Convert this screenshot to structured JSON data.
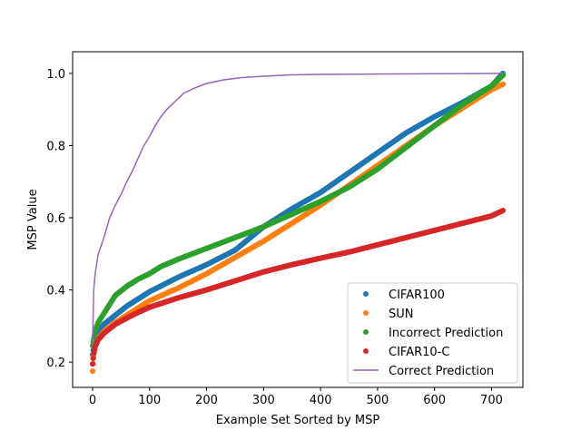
{
  "chart_data": {
    "type": "scatter",
    "title": "",
    "xlabel": "Example Set Sorted by MSP",
    "ylabel": "MSP Value",
    "xlim": [
      -35,
      755
    ],
    "ylim": [
      0.13,
      1.06
    ],
    "xticks": [
      0,
      100,
      200,
      300,
      400,
      500,
      600,
      700
    ],
    "yticks": [
      0.2,
      0.4,
      0.6,
      0.8,
      1.0
    ],
    "xtick_labels": [
      "0",
      "100",
      "200",
      "300",
      "400",
      "500",
      "600",
      "700"
    ],
    "ytick_labels": [
      "0.2",
      "0.4",
      "0.6",
      "0.8",
      "1.0"
    ],
    "grid": false,
    "legend_position": "bottom-right",
    "series": [
      {
        "name": "CIFAR100",
        "kind": "points",
        "color": "#1f77b4",
        "points": [
          [
            0,
            0.22
          ],
          [
            2,
            0.245
          ],
          [
            5,
            0.265
          ],
          [
            10,
            0.285
          ],
          [
            20,
            0.305
          ],
          [
            40,
            0.33
          ],
          [
            60,
            0.355
          ],
          [
            80,
            0.375
          ],
          [
            100,
            0.395
          ],
          [
            150,
            0.435
          ],
          [
            200,
            0.47
          ],
          [
            250,
            0.51
          ],
          [
            300,
            0.575
          ],
          [
            350,
            0.625
          ],
          [
            400,
            0.67
          ],
          [
            450,
            0.725
          ],
          [
            500,
            0.78
          ],
          [
            550,
            0.835
          ],
          [
            600,
            0.88
          ],
          [
            650,
            0.92
          ],
          [
            700,
            0.965
          ],
          [
            720,
            1.0
          ]
        ]
      },
      {
        "name": "SUN",
        "kind": "points",
        "color": "#ff7f0e",
        "points": [
          [
            0,
            0.175
          ],
          [
            2,
            0.215
          ],
          [
            5,
            0.245
          ],
          [
            10,
            0.265
          ],
          [
            20,
            0.285
          ],
          [
            40,
            0.31
          ],
          [
            60,
            0.33
          ],
          [
            80,
            0.35
          ],
          [
            100,
            0.37
          ],
          [
            150,
            0.405
          ],
          [
            200,
            0.445
          ],
          [
            250,
            0.49
          ],
          [
            300,
            0.535
          ],
          [
            350,
            0.585
          ],
          [
            400,
            0.635
          ],
          [
            450,
            0.69
          ],
          [
            500,
            0.745
          ],
          [
            550,
            0.8
          ],
          [
            600,
            0.855
          ],
          [
            650,
            0.905
          ],
          [
            700,
            0.955
          ],
          [
            720,
            0.97
          ]
        ]
      },
      {
        "name": "Incorrect Prediction",
        "kind": "points",
        "color": "#2ca02c",
        "points": [
          [
            0,
            0.245
          ],
          [
            2,
            0.265
          ],
          [
            5,
            0.29
          ],
          [
            10,
            0.31
          ],
          [
            20,
            0.335
          ],
          [
            30,
            0.36
          ],
          [
            40,
            0.385
          ],
          [
            60,
            0.41
          ],
          [
            80,
            0.43
          ],
          [
            100,
            0.445
          ],
          [
            120,
            0.465
          ],
          [
            150,
            0.485
          ],
          [
            200,
            0.515
          ],
          [
            250,
            0.545
          ],
          [
            300,
            0.575
          ],
          [
            350,
            0.61
          ],
          [
            400,
            0.645
          ],
          [
            450,
            0.685
          ],
          [
            500,
            0.735
          ],
          [
            550,
            0.795
          ],
          [
            600,
            0.855
          ],
          [
            650,
            0.915
          ],
          [
            700,
            0.965
          ],
          [
            720,
            0.995
          ]
        ]
      },
      {
        "name": "CIFAR10-C",
        "kind": "points",
        "color": "#d62728",
        "points": [
          [
            0,
            0.195
          ],
          [
            2,
            0.225
          ],
          [
            5,
            0.245
          ],
          [
            10,
            0.262
          ],
          [
            20,
            0.28
          ],
          [
            40,
            0.305
          ],
          [
            60,
            0.322
          ],
          [
            80,
            0.338
          ],
          [
            100,
            0.352
          ],
          [
            150,
            0.378
          ],
          [
            200,
            0.4
          ],
          [
            250,
            0.425
          ],
          [
            300,
            0.45
          ],
          [
            350,
            0.47
          ],
          [
            400,
            0.488
          ],
          [
            450,
            0.505
          ],
          [
            500,
            0.525
          ],
          [
            550,
            0.545
          ],
          [
            600,
            0.565
          ],
          [
            650,
            0.585
          ],
          [
            700,
            0.605
          ],
          [
            720,
            0.62
          ]
        ]
      },
      {
        "name": "Correct Prediction",
        "kind": "line",
        "color": "#9467bd",
        "points": [
          [
            0,
            0.25
          ],
          [
            2,
            0.4
          ],
          [
            5,
            0.45
          ],
          [
            10,
            0.5
          ],
          [
            20,
            0.545
          ],
          [
            30,
            0.6
          ],
          [
            40,
            0.635
          ],
          [
            50,
            0.665
          ],
          [
            60,
            0.7
          ],
          [
            70,
            0.73
          ],
          [
            80,
            0.765
          ],
          [
            90,
            0.8
          ],
          [
            100,
            0.825
          ],
          [
            110,
            0.855
          ],
          [
            120,
            0.88
          ],
          [
            130,
            0.9
          ],
          [
            140,
            0.915
          ],
          [
            160,
            0.945
          ],
          [
            180,
            0.96
          ],
          [
            200,
            0.972
          ],
          [
            230,
            0.982
          ],
          [
            260,
            0.988
          ],
          [
            300,
            0.992
          ],
          [
            350,
            0.996
          ],
          [
            400,
            0.997
          ],
          [
            500,
            0.998
          ],
          [
            600,
            0.999
          ],
          [
            720,
            1.0
          ]
        ]
      }
    ]
  }
}
